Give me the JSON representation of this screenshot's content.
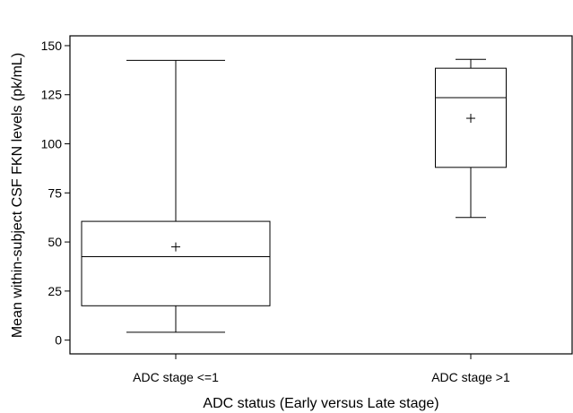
{
  "chart_data": {
    "type": "box",
    "title": "",
    "xlabel": "ADC status (Early versus Late stage)",
    "ylabel": "Mean within-subject CSF FKN levels (pk/mL)",
    "ylim": [
      -7,
      155
    ],
    "yticks": [
      0,
      25,
      50,
      75,
      100,
      125,
      150
    ],
    "categories": [
      "ADC stage <=1",
      "ADC stage >1"
    ],
    "boxes": [
      {
        "category": "ADC stage <=1",
        "whisker_low": 4,
        "q1": 17.5,
        "median": 42.5,
        "q3": 60.5,
        "whisker_high": 142.5,
        "mean": 47.5
      },
      {
        "category": "ADC stage >1",
        "whisker_low": 62.5,
        "q1": 88,
        "median": 123.5,
        "q3": 138.5,
        "whisker_high": 143,
        "mean": 113
      }
    ],
    "grid": false,
    "legend": "none"
  }
}
